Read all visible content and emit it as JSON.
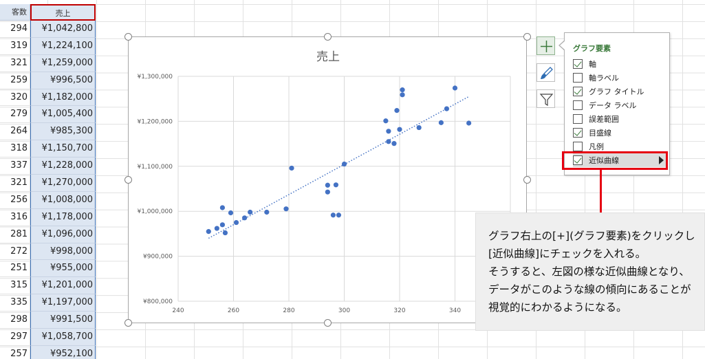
{
  "sheet": {
    "header": {
      "col_a": "客数",
      "col_b": "売上"
    },
    "rows": [
      {
        "a": "294",
        "b": "¥1,042,800"
      },
      {
        "a": "319",
        "b": "¥1,224,100"
      },
      {
        "a": "321",
        "b": "¥1,259,000"
      },
      {
        "a": "259",
        "b": "¥996,500"
      },
      {
        "a": "320",
        "b": "¥1,182,000"
      },
      {
        "a": "279",
        "b": "¥1,005,400"
      },
      {
        "a": "264",
        "b": "¥985,300"
      },
      {
        "a": "318",
        "b": "¥1,150,700"
      },
      {
        "a": "337",
        "b": "¥1,228,000"
      },
      {
        "a": "321",
        "b": "¥1,270,000"
      },
      {
        "a": "256",
        "b": "¥1,008,000"
      },
      {
        "a": "316",
        "b": "¥1,178,000"
      },
      {
        "a": "281",
        "b": "¥1,096,000"
      },
      {
        "a": "272",
        "b": "¥998,000"
      },
      {
        "a": "251",
        "b": "¥955,000"
      },
      {
        "a": "315",
        "b": "¥1,201,000"
      },
      {
        "a": "335",
        "b": "¥1,197,000"
      },
      {
        "a": "298",
        "b": "¥991,500"
      },
      {
        "a": "297",
        "b": "¥1,058,700"
      },
      {
        "a": "257",
        "b": "¥952,100"
      }
    ]
  },
  "chart_data": {
    "type": "scatter",
    "title": "売上",
    "xlabel": "",
    "ylabel": "",
    "xlim": [
      240,
      360
    ],
    "ylim": [
      800000,
      1300000
    ],
    "x_ticks": [
      "240",
      "260",
      "280",
      "300",
      "320",
      "340"
    ],
    "y_ticks": [
      "¥800,000",
      "¥900,000",
      "¥1,000,000",
      "¥1,100,000",
      "¥1,200,000",
      "¥1,300,000"
    ],
    "grid": true,
    "trendline": {
      "type": "linear",
      "style": "dotted",
      "color": "#4472c4"
    },
    "point_color": "#4472c4",
    "points": [
      {
        "x": 251,
        "y": 955000
      },
      {
        "x": 254,
        "y": 962000
      },
      {
        "x": 256,
        "y": 970000
      },
      {
        "x": 256,
        "y": 1008000
      },
      {
        "x": 257,
        "y": 952100
      },
      {
        "x": 259,
        "y": 996500
      },
      {
        "x": 261,
        "y": 975000
      },
      {
        "x": 264,
        "y": 985300
      },
      {
        "x": 266,
        "y": 998000
      },
      {
        "x": 272,
        "y": 998000
      },
      {
        "x": 279,
        "y": 1005400
      },
      {
        "x": 281,
        "y": 1096000
      },
      {
        "x": 294,
        "y": 1042800
      },
      {
        "x": 294,
        "y": 1058000
      },
      {
        "x": 296,
        "y": 991500
      },
      {
        "x": 297,
        "y": 1058700
      },
      {
        "x": 298,
        "y": 991500
      },
      {
        "x": 300,
        "y": 1105000
      },
      {
        "x": 315,
        "y": 1201000
      },
      {
        "x": 316,
        "y": 1178000
      },
      {
        "x": 316,
        "y": 1155000
      },
      {
        "x": 318,
        "y": 1150700
      },
      {
        "x": 319,
        "y": 1224100
      },
      {
        "x": 320,
        "y": 1182000
      },
      {
        "x": 321,
        "y": 1259000
      },
      {
        "x": 321,
        "y": 1270000
      },
      {
        "x": 327,
        "y": 1186000
      },
      {
        "x": 335,
        "y": 1197000
      },
      {
        "x": 337,
        "y": 1228000
      },
      {
        "x": 340,
        "y": 1274000
      },
      {
        "x": 345,
        "y": 1196000
      }
    ],
    "trend_endpoints": [
      {
        "x": 251,
        "y": 940000
      },
      {
        "x": 345,
        "y": 1255000
      }
    ]
  },
  "chart_elements_panel": {
    "title": "グラフ要素",
    "items": [
      {
        "label": "軸",
        "checked": true
      },
      {
        "label": "軸ラベル",
        "checked": false
      },
      {
        "label": "グラフ タイトル",
        "checked": true
      },
      {
        "label": "データ ラベル",
        "checked": false
      },
      {
        "label": "誤差範囲",
        "checked": false
      },
      {
        "label": "目盛線",
        "checked": true
      },
      {
        "label": "凡例",
        "checked": false
      },
      {
        "label": "近似曲線",
        "checked": true
      }
    ]
  },
  "callout": {
    "text": "グラフ右上の[+](グラフ要素)をクリックし\n[近似曲線]にチェックを入れる。\nそうすると、左図の様な近似曲線となり、\nデータがこのような線の傾向にあることが\n視覚的にわかるようになる。"
  },
  "colors": {
    "accent": "#e60012",
    "series": "#4472c4",
    "panel_title": "#3b7a3b"
  }
}
